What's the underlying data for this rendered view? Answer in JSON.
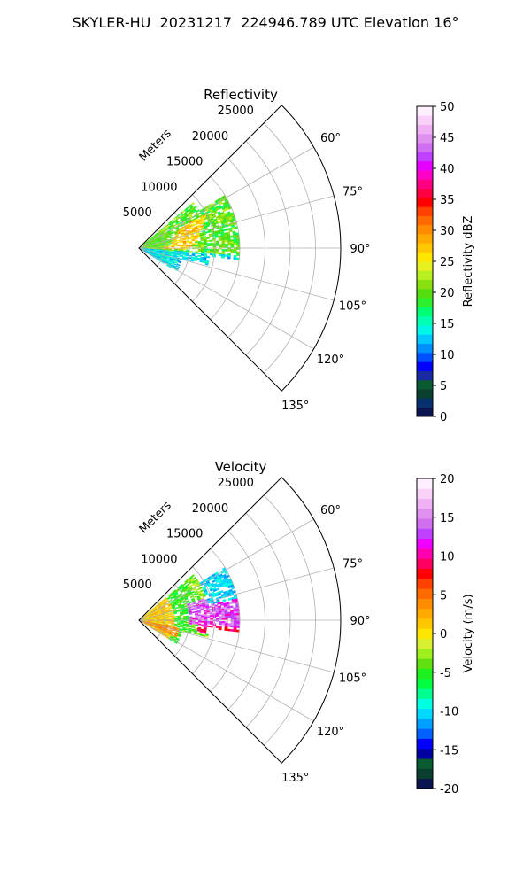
{
  "figure": {
    "title": "SKYLER-HU  20231217  224946.789 UTC Elevation 16°"
  },
  "chart_data": [
    {
      "type": "heatmap",
      "projection": "polar-sector",
      "title": "Reflectivity",
      "range_label": "Meters",
      "range_ticks": [
        5000,
        10000,
        15000,
        20000,
        25000
      ],
      "range_max": 28000,
      "azimuth_ticks": [
        "60°",
        "75°",
        "90°",
        "105°",
        "120°",
        "135°"
      ],
      "azimuth_range": [
        45,
        135
      ],
      "grid": true,
      "field_extent_m": 14000,
      "colorbar": {
        "label": "Reflectivity dBZ",
        "min": 0,
        "max": 50,
        "ticks": [
          0,
          5,
          10,
          15,
          20,
          25,
          30,
          35,
          40,
          45,
          50
        ],
        "colors": [
          "#0a1550",
          "#06306e",
          "#0a3f2f",
          "#0a5a32",
          "#1a2aa0",
          "#0000ff",
          "#0050ff",
          "#0090ff",
          "#00c8ff",
          "#00f5e8",
          "#00ffb0",
          "#00ff70",
          "#2cf02c",
          "#55dd10",
          "#88e010",
          "#b8f020",
          "#e8f020",
          "#ffe600",
          "#ffc800",
          "#ffaa00",
          "#ff8c00",
          "#ff6a00",
          "#ff4000",
          "#ff0000",
          "#ff0040",
          "#ff0080",
          "#ff00c8",
          "#e600ff",
          "#c040ff",
          "#d070f0",
          "#e090f0",
          "#f0b0f5",
          "#f8d0f8",
          "#fff0ff"
        ]
      }
    },
    {
      "type": "heatmap",
      "projection": "polar-sector",
      "title": "Velocity",
      "range_label": "Meters",
      "range_ticks": [
        5000,
        10000,
        15000,
        20000,
        25000
      ],
      "range_max": 28000,
      "azimuth_ticks": [
        "60°",
        "75°",
        "90°",
        "105°",
        "120°",
        "135°"
      ],
      "azimuth_range": [
        45,
        135
      ],
      "grid": true,
      "field_extent_m": 14000,
      "colorbar": {
        "label": "Velocity (m/s)",
        "min": -20,
        "max": 20,
        "ticks": [
          -20,
          -15,
          -10,
          -5,
          0,
          5,
          10,
          15,
          20
        ],
        "colors": [
          "#0a1550",
          "#0a3f2f",
          "#0a5a32",
          "#0000a0",
          "#0000ff",
          "#0060ff",
          "#00a0ff",
          "#00d8ff",
          "#00ffe0",
          "#00ff90",
          "#00ff40",
          "#20f020",
          "#60e010",
          "#a0f020",
          "#d8f030",
          "#ffe600",
          "#ffc800",
          "#ffaa00",
          "#ff8c00",
          "#ff6a00",
          "#ff4000",
          "#ff0000",
          "#ff0060",
          "#ff00b0",
          "#f000ff",
          "#c040ff",
          "#d070f0",
          "#e090f0",
          "#f0b0f5",
          "#f8d0f8",
          "#fff0ff"
        ]
      }
    }
  ]
}
